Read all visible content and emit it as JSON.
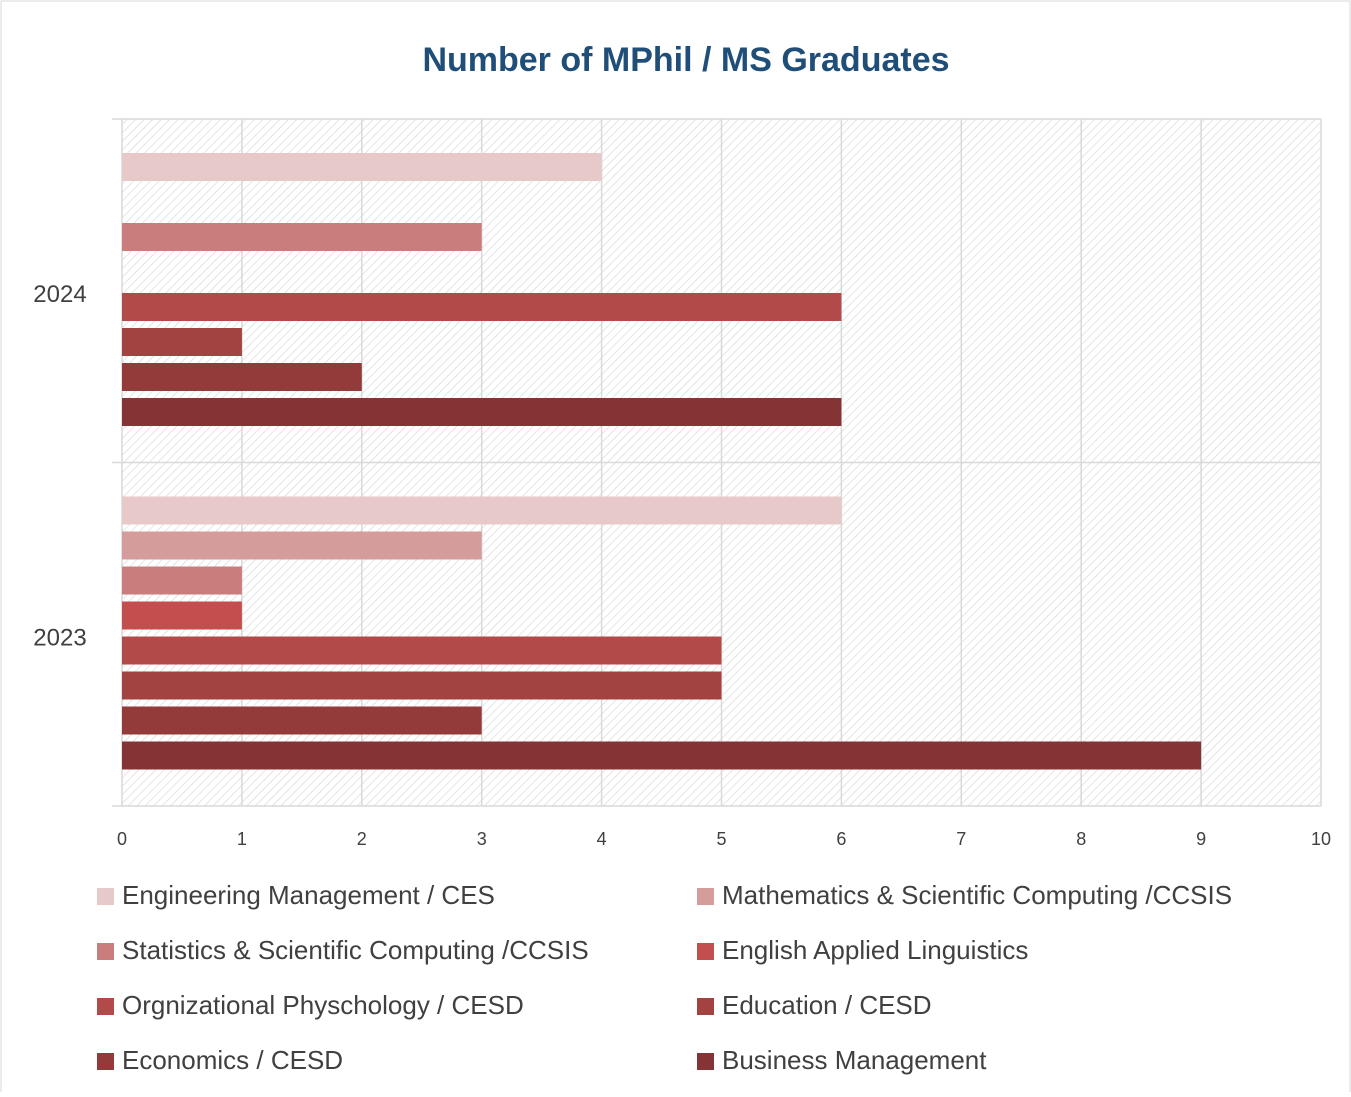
{
  "chart_data": {
    "type": "bar",
    "orientation": "horizontal",
    "title": "Number of MPhil / MS Graduates",
    "categories": [
      "2024",
      "2023"
    ],
    "series": [
      {
        "name": "Engineering Management / CES",
        "color": "#e8c9c9",
        "values": [
          4,
          6
        ]
      },
      {
        "name": "Mathematics & Scientific Computing /CCSIS",
        "color": "#d59c9c",
        "values": [
          null,
          3
        ]
      },
      {
        "name": "Statistics & Scientific Computing /CCSIS",
        "color": "#ca7d7d",
        "values": [
          3,
          1
        ]
      },
      {
        "name": "English Applied Linguistics",
        "color": "#c24f4d",
        "values": [
          null,
          1
        ]
      },
      {
        "name": "Orgnizational Physchology / CESD",
        "color": "#b14a48",
        "values": [
          6,
          5
        ]
      },
      {
        "name": "Education / CESD",
        "color": "#a34341",
        "values": [
          1,
          5
        ]
      },
      {
        "name": "Economics / CESD",
        "color": "#933b3b",
        "values": [
          2,
          3
        ]
      },
      {
        "name": "Business Management",
        "color": "#853435",
        "values": [
          6,
          9
        ]
      }
    ],
    "xlim": [
      0,
      10
    ],
    "xticks": [
      0,
      1,
      2,
      3,
      4,
      5,
      6,
      7,
      8,
      9,
      10
    ],
    "grid": true
  }
}
